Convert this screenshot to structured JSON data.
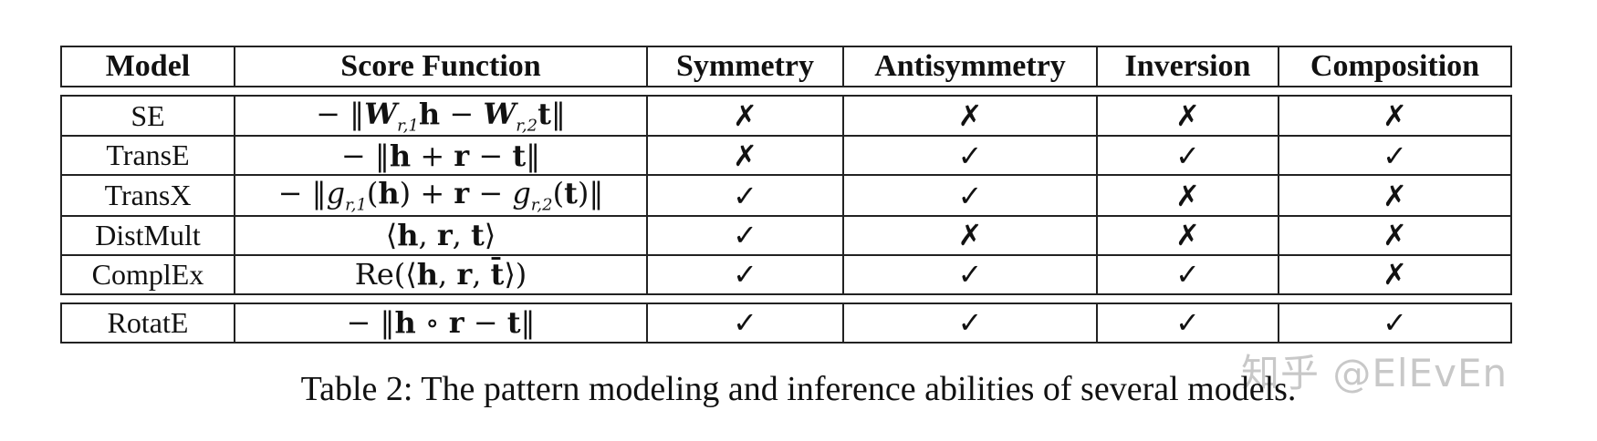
{
  "table": {
    "headers": [
      "Model",
      "Score Function",
      "Symmetry",
      "Antisymmetry",
      "Inversion",
      "Composition"
    ],
    "rows": [
      {
        "model": "SE",
        "score": "−‖W_{r,1}h − W_{r,2}t‖",
        "marks": [
          "✗",
          "✗",
          "✗",
          "✗"
        ]
      },
      {
        "model": "TransE",
        "score": "−‖h + r − t‖",
        "marks": [
          "✗",
          "✓",
          "✓",
          "✓"
        ]
      },
      {
        "model": "TransX",
        "score": "−‖g_{r,1}(h) + r − g_{r,2}(t)‖",
        "marks": [
          "✓",
          "✓",
          "✗",
          "✗"
        ]
      },
      {
        "model": "DistMult",
        "score": "⟨h, r, t⟩",
        "marks": [
          "✓",
          "✗",
          "✗",
          "✗"
        ]
      },
      {
        "model": "ComplEx",
        "score": "Re(⟨h, r, t̄⟩)",
        "marks": [
          "✓",
          "✓",
          "✓",
          "✗"
        ]
      },
      {
        "model": "RotatE",
        "score": "−‖h ∘ r − t‖",
        "marks": [
          "✓",
          "✓",
          "✓",
          "✓"
        ]
      }
    ]
  },
  "caption": "Table 2: The pattern modeling and inference abilities of several models.",
  "watermark": "知乎 @ElEvEn"
}
